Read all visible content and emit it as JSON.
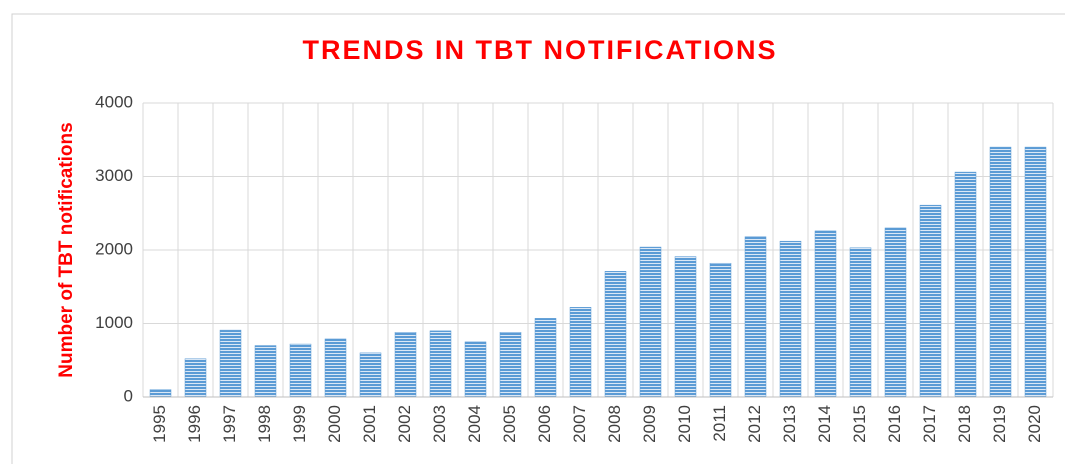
{
  "chart_data": {
    "type": "bar",
    "title": "TRENDS IN TBT NOTIFICATIONS",
    "y_label": "Number of TBT notifications",
    "categories": [
      "1995",
      "1996",
      "1997",
      "1998",
      "1999",
      "2000",
      "2001",
      "2002",
      "2003",
      "2004",
      "2005",
      "2006",
      "2007",
      "2008",
      "2009",
      "2010",
      "2011",
      "2012",
      "2013",
      "2014",
      "2015",
      "2016",
      "2017",
      "2018",
      "2019",
      "2020"
    ],
    "values": [
      100,
      520,
      910,
      700,
      720,
      790,
      600,
      880,
      900,
      750,
      880,
      1070,
      1220,
      1710,
      2040,
      1910,
      1820,
      2180,
      2120,
      2260,
      2030,
      2300,
      2610,
      3060,
      3400,
      3400
    ],
    "color": "#5b9bd5",
    "ylim": [
      0,
      4000
    ],
    "yticks": [
      0,
      1000,
      2000,
      3000,
      4000
    ],
    "grid": true
  }
}
